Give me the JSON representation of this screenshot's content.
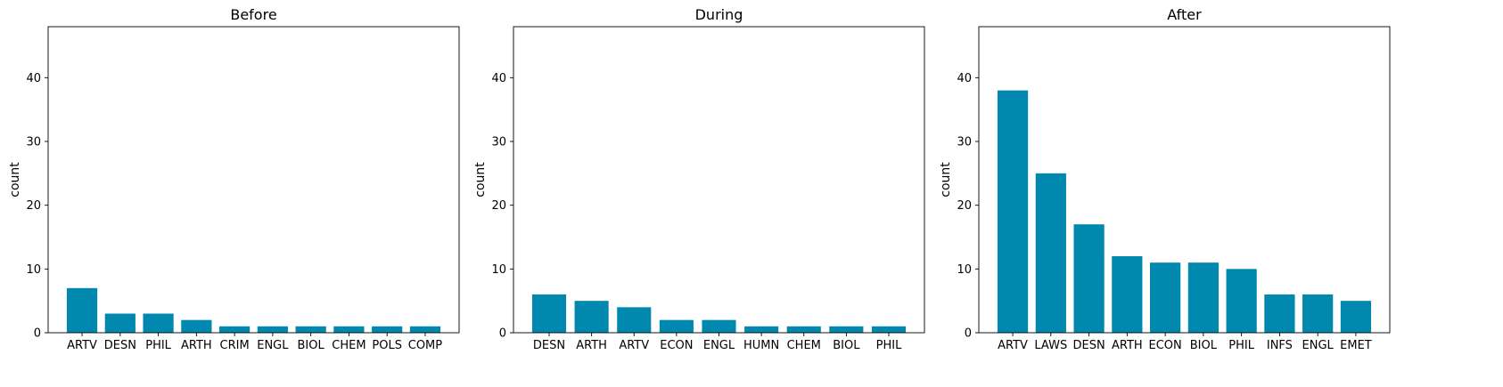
{
  "chart_data": [
    {
      "type": "bar",
      "title": "Before",
      "xlabel": "",
      "ylabel": "count",
      "ylim": [
        0,
        48
      ],
      "yticks": [
        0,
        10,
        20,
        30,
        40
      ],
      "grid": false,
      "color": "#0088AF",
      "categories": [
        "ARTV",
        "DESN",
        "PHIL",
        "ARTH",
        "CRIM",
        "ENGL",
        "BIOL",
        "CHEM",
        "POLS",
        "COMP"
      ],
      "values": [
        7,
        3,
        3,
        2,
        1,
        1,
        1,
        1,
        1,
        1
      ]
    },
    {
      "type": "bar",
      "title": "During",
      "xlabel": "",
      "ylabel": "count",
      "ylim": [
        0,
        48
      ],
      "yticks": [
        0,
        10,
        20,
        30,
        40
      ],
      "grid": false,
      "color": "#0088AF",
      "categories": [
        "DESN",
        "ARTH",
        "ARTV",
        "ECON",
        "ENGL",
        "HUMN",
        "CHEM",
        "BIOL",
        "PHIL"
      ],
      "values": [
        6,
        5,
        4,
        2,
        2,
        1,
        1,
        1,
        1
      ]
    },
    {
      "type": "bar",
      "title": "After",
      "xlabel": "",
      "ylabel": "count",
      "ylim": [
        0,
        48
      ],
      "yticks": [
        0,
        10,
        20,
        30,
        40
      ],
      "grid": false,
      "color": "#0088AF",
      "categories": [
        "ARTV",
        "LAWS",
        "DESN",
        "ARTH",
        "ECON",
        "BIOL",
        "PHIL",
        "INFS",
        "ENGL",
        "EMET"
      ],
      "values": [
        38,
        25,
        17,
        12,
        11,
        11,
        10,
        6,
        6,
        5
      ]
    }
  ]
}
